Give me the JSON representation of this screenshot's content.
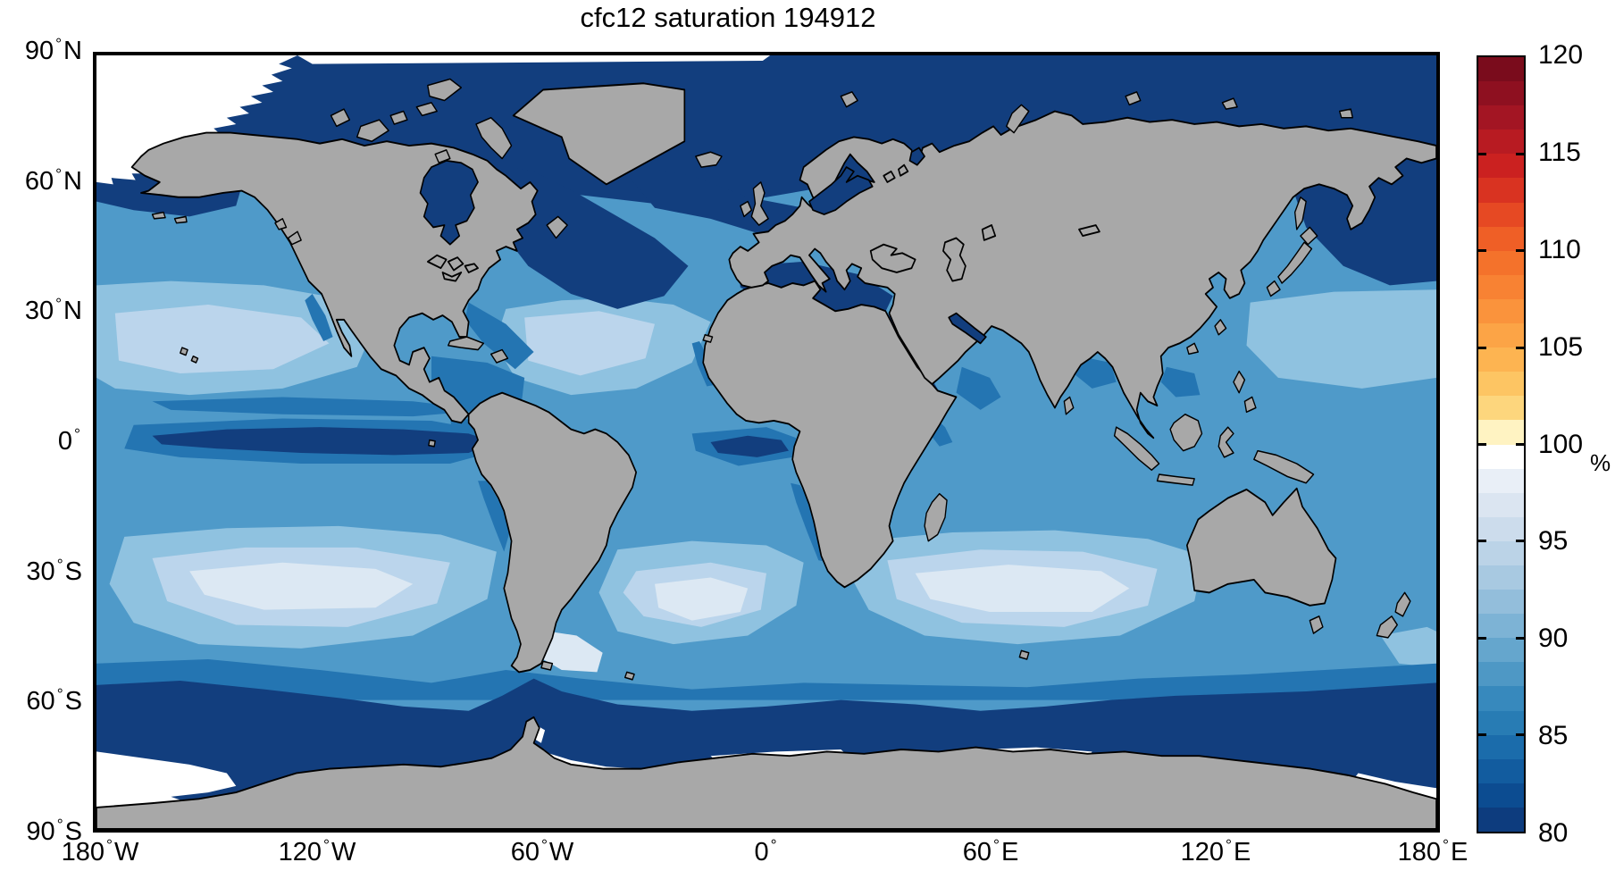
{
  "title": "cfc12 saturation 194912",
  "chart_data": {
    "type": "heatmap",
    "title": "cfc12 saturation 194912",
    "variable": "cfc12 saturation",
    "date_code": "194912",
    "units": "%",
    "projection": "equirectangular world map, longitude -180..180, latitude -90..90",
    "degree_symbol": "°",
    "x_axis": {
      "range_deg": [
        -180,
        180
      ],
      "ticks": [
        {
          "value": "180",
          "hemi": "W"
        },
        {
          "value": "120",
          "hemi": "W"
        },
        {
          "value": "60",
          "hemi": "W"
        },
        {
          "value": "0",
          "hemi": ""
        },
        {
          "value": "60",
          "hemi": "E"
        },
        {
          "value": "120",
          "hemi": "E"
        },
        {
          "value": "180",
          "hemi": "E"
        }
      ]
    },
    "y_axis": {
      "range_deg": [
        -90,
        90
      ],
      "ticks": [
        {
          "value": "90",
          "hemi": "N"
        },
        {
          "value": "60",
          "hemi": "N"
        },
        {
          "value": "30",
          "hemi": "N"
        },
        {
          "value": "0",
          "hemi": ""
        },
        {
          "value": "30",
          "hemi": "S"
        },
        {
          "value": "60",
          "hemi": "S"
        },
        {
          "value": "90",
          "hemi": "S"
        }
      ]
    },
    "colorbar": {
      "unit": "%",
      "min": 80,
      "max": 120,
      "band_size": 1.25,
      "tick_labels": [
        "120",
        "115",
        "110",
        "105",
        "100",
        "95",
        "90",
        "85",
        "80"
      ],
      "colors_top_to_bottom": [
        "#7a0c1c",
        "#8e1020",
        "#a31523",
        "#b81b22",
        "#cb2120",
        "#d93321",
        "#e64923",
        "#ef5f26",
        "#f4722b",
        "#f88233",
        "#fa933c",
        "#fca446",
        "#fdb451",
        "#fdc563",
        "#fdd67d",
        "#fff3c2",
        "#ffffff",
        "#e9eff7",
        "#dbe5f1",
        "#ccdcec",
        "#bbd3e7",
        "#a8c9e1",
        "#93bedb",
        "#7db3d5",
        "#65a6cd",
        "#4e98c5",
        "#3789bd",
        "#287cb4",
        "#1b6cab",
        "#125c9f",
        "#0c4c91",
        "#0d3c7e"
      ]
    },
    "palette": {
      "land": "#a8a8a8",
      "coastline": "#000000",
      "frame": "#000000",
      "ocean_base": "#4f9ac9",
      "ocean_dark": "#123e7e",
      "ocean_meddark": "#2475b2",
      "ocean_light": "#8fc2e0",
      "ocean_lighter": "#bbd5ec",
      "ocean_lightest": "#dce8f3",
      "no_data": "#ffffff"
    },
    "regions": [
      {
        "name": "Arctic Ocean",
        "approx_percent": "80-84"
      },
      {
        "name": "Subpolar North Atlantic / Labrador Sea / Hudson Bay",
        "approx_percent": "80-86"
      },
      {
        "name": "Bering Sea / Sea of Okhotsk / NW Pacific",
        "approx_percent": "80-86"
      },
      {
        "name": "Northern subtropical gyres (N Pacific, N Atlantic)",
        "approx_percent": "90-94"
      },
      {
        "name": "Equatorial Pacific cold tongue",
        "approx_percent": "80-85"
      },
      {
        "name": "Equatorial Atlantic upwelling",
        "approx_percent": "83-87"
      },
      {
        "name": "Southern subtropics 20-45S (S Atlantic, S Indian, S Pacific)",
        "approx_percent": "92-98"
      },
      {
        "name": "Patagonian shelf",
        "approx_percent": "96-100"
      },
      {
        "name": "Southern Ocean 55-72S",
        "approx_percent": "80-84"
      },
      {
        "name": "Ice shelves / polar grid edge (white)",
        "approx_percent": "no data"
      }
    ]
  }
}
